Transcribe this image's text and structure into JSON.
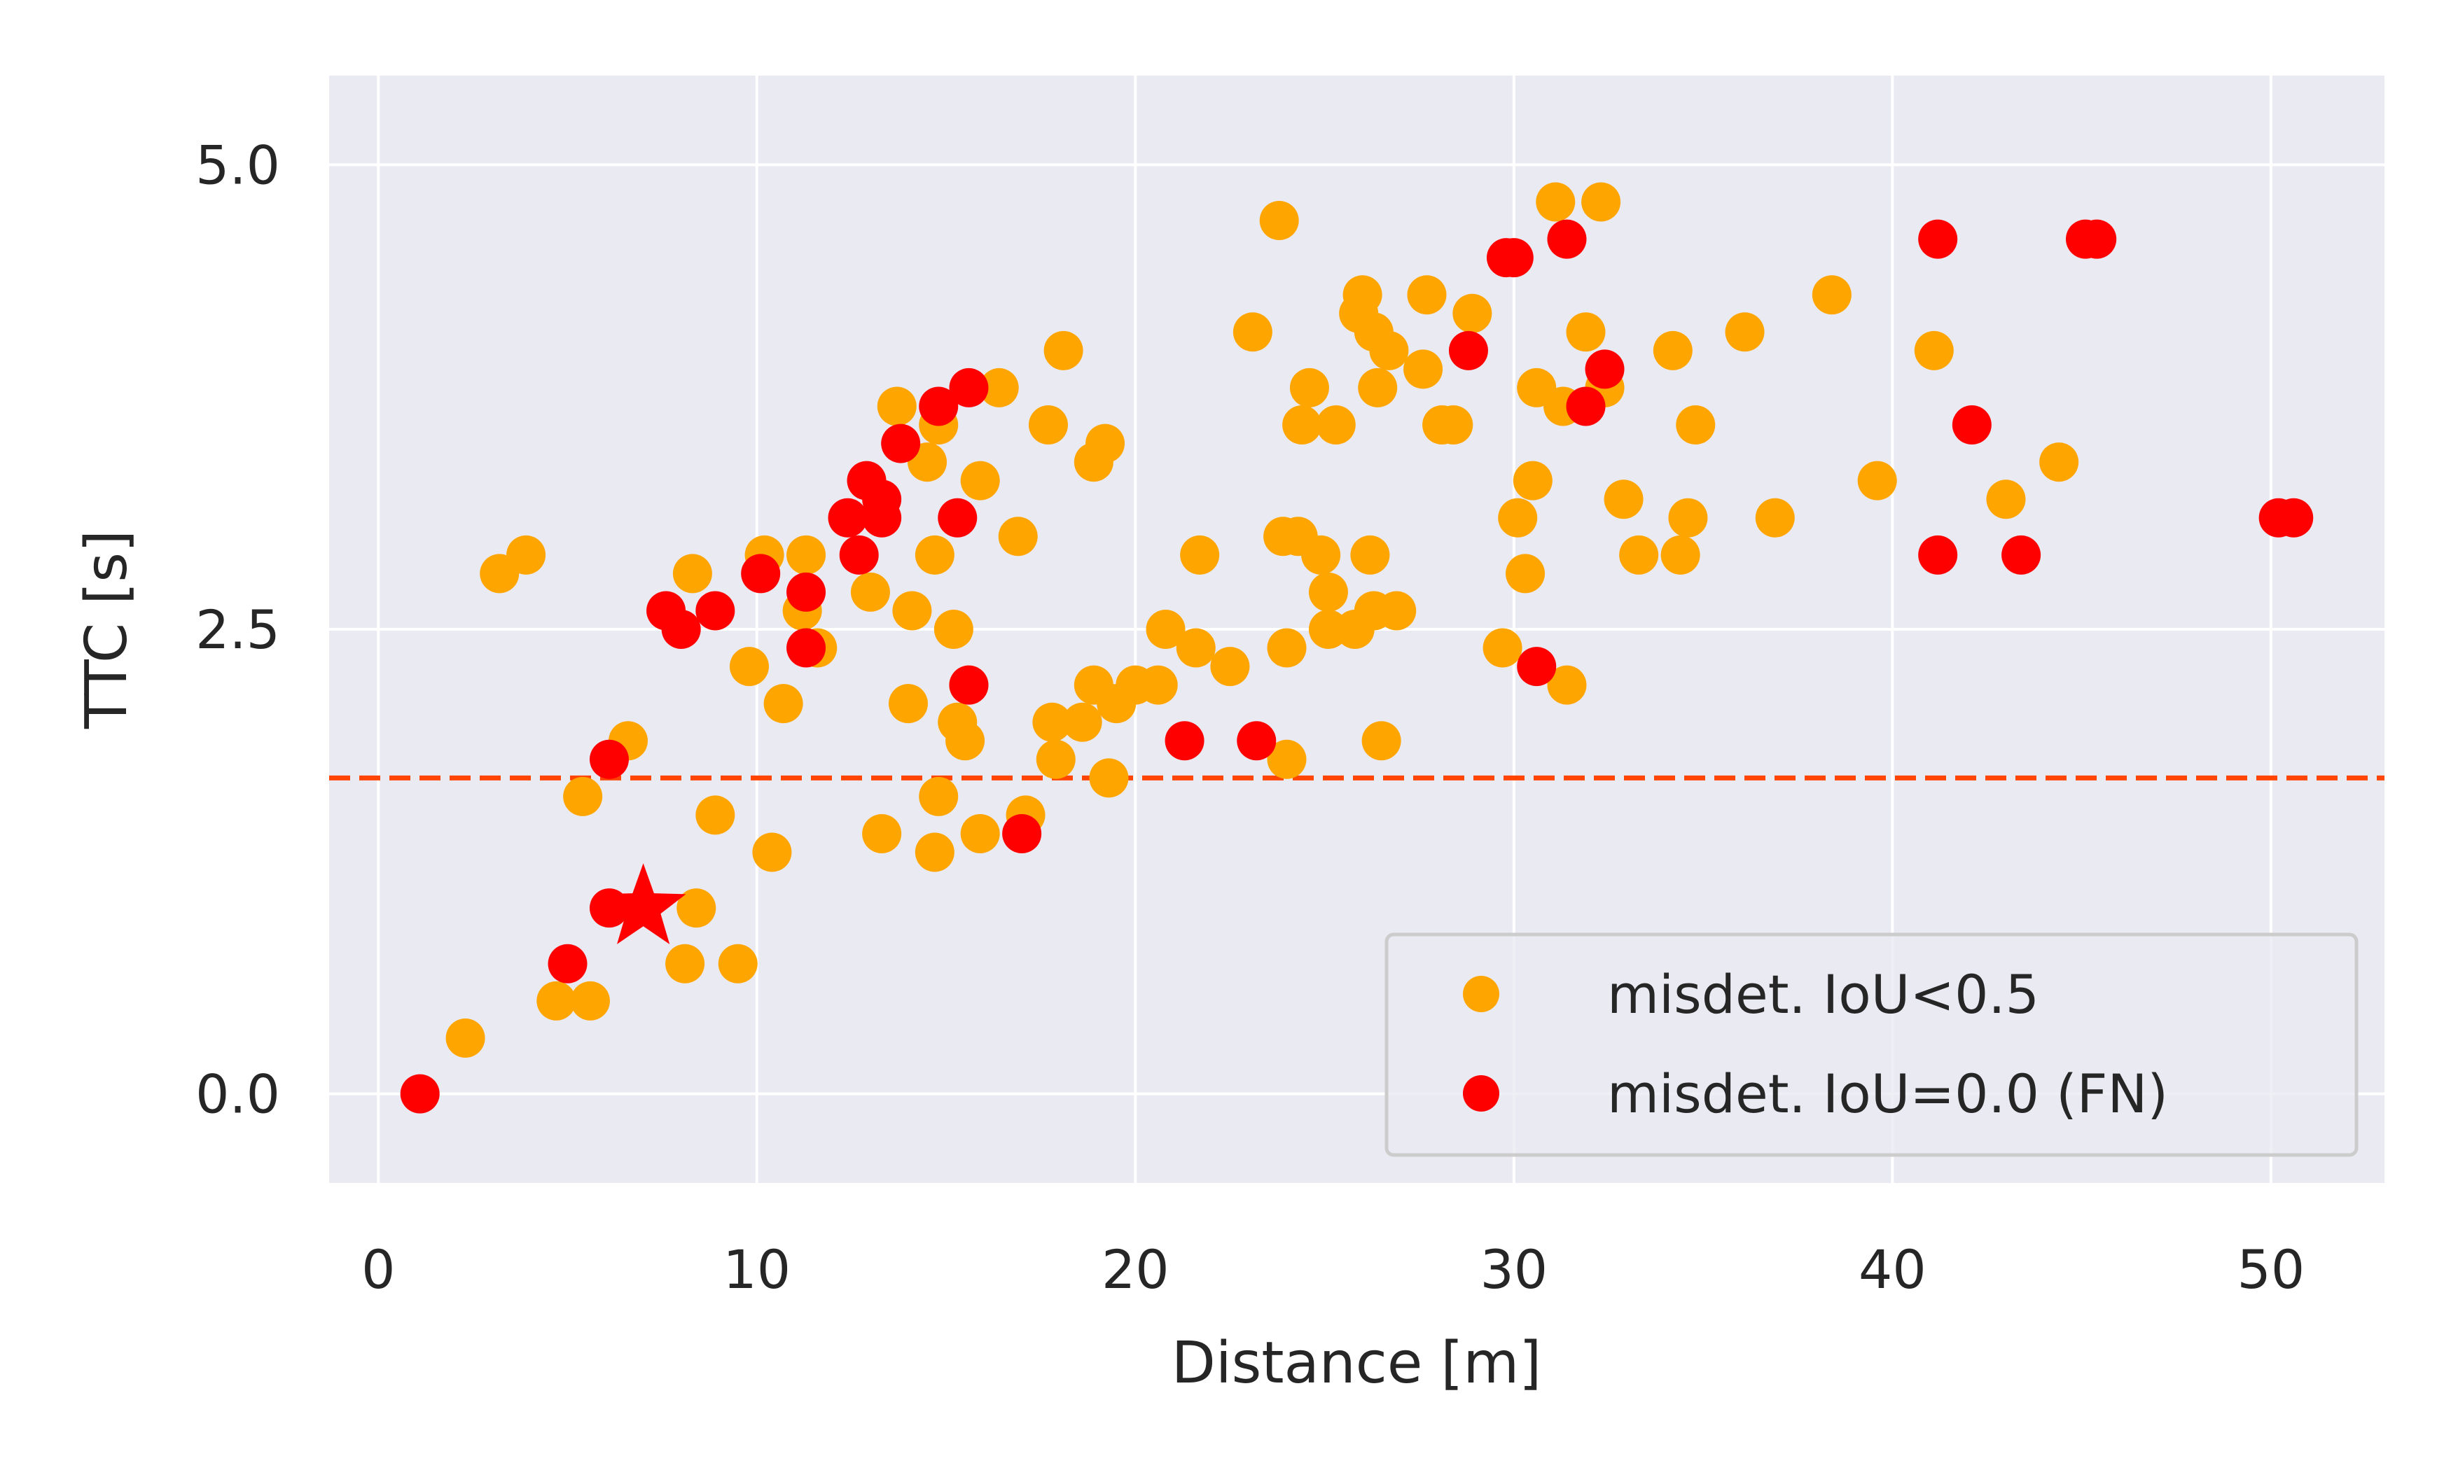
{
  "chart_data": {
    "type": "scatter",
    "xlabel": "Distance [m]",
    "ylabel": "TTC [s]",
    "xlim": [
      -1.3,
      53
    ],
    "ylim": [
      -0.48,
      5.48
    ],
    "xticks": [
      0,
      10,
      20,
      30,
      40,
      50
    ],
    "yticks": [
      0.0,
      2.5,
      5.0
    ],
    "xtick_labels": [
      "0",
      "10",
      "20",
      "30",
      "40",
      "50"
    ],
    "ytick_labels": [
      "0.0",
      "2.5",
      "5.0"
    ],
    "grid": true,
    "legend_position": "lower right",
    "threshold_line": {
      "y": 1.7,
      "style": "dashed",
      "color": "#ff4500"
    },
    "series": [
      {
        "name": "misdet. IoU<0.5",
        "color": "#ffa500",
        "marker": "circle",
        "points": [
          [
            2.3,
            0.3
          ],
          [
            3.2,
            2.8
          ],
          [
            3.9,
            2.9
          ],
          [
            4.7,
            0.5
          ],
          [
            5.6,
            0.5
          ],
          [
            5.4,
            1.6
          ],
          [
            6.6,
            1.9
          ],
          [
            8.1,
            0.7
          ],
          [
            8.3,
            2.8
          ],
          [
            8.4,
            1.0
          ],
          [
            8.9,
            1.5
          ],
          [
            9.5,
            0.7
          ],
          [
            9.8,
            2.3
          ],
          [
            10.2,
            2.9
          ],
          [
            10.4,
            1.3
          ],
          [
            10.7,
            2.1
          ],
          [
            11.2,
            2.6
          ],
          [
            11.3,
            2.9
          ],
          [
            11.6,
            2.4
          ],
          [
            13.0,
            2.7
          ],
          [
            13.3,
            1.4
          ],
          [
            13.7,
            3.7
          ],
          [
            14.0,
            2.1
          ],
          [
            14.1,
            2.6
          ],
          [
            14.5,
            3.4
          ],
          [
            14.7,
            2.9
          ],
          [
            14.8,
            3.6
          ],
          [
            14.8,
            1.6
          ],
          [
            14.7,
            1.3
          ],
          [
            15.2,
            2.5
          ],
          [
            15.3,
            2.0
          ],
          [
            15.5,
            1.9
          ],
          [
            15.6,
            2.2
          ],
          [
            15.9,
            3.3
          ],
          [
            15.9,
            1.4
          ],
          [
            16.4,
            3.8
          ],
          [
            16.9,
            3.0
          ],
          [
            17.1,
            1.5
          ],
          [
            17.7,
            3.6
          ],
          [
            17.8,
            2.0
          ],
          [
            17.9,
            1.8
          ],
          [
            18.1,
            4.0
          ],
          [
            18.6,
            2.0
          ],
          [
            18.9,
            2.2
          ],
          [
            18.9,
            3.4
          ],
          [
            19.2,
            3.5
          ],
          [
            19.3,
            1.7
          ],
          [
            19.5,
            2.1
          ],
          [
            20.0,
            2.2
          ],
          [
            20.6,
            2.2
          ],
          [
            20.8,
            2.5
          ],
          [
            21.6,
            2.4
          ],
          [
            21.7,
            2.9
          ],
          [
            22.5,
            2.3
          ],
          [
            23.1,
            4.1
          ],
          [
            23.8,
            4.7
          ],
          [
            23.9,
            3.0
          ],
          [
            24.0,
            1.8
          ],
          [
            24.0,
            2.4
          ],
          [
            24.3,
            3.0
          ],
          [
            24.4,
            3.6
          ],
          [
            24.6,
            3.8
          ],
          [
            24.9,
            2.9
          ],
          [
            25.1,
            2.7
          ],
          [
            25.1,
            2.5
          ],
          [
            25.3,
            3.6
          ],
          [
            25.8,
            2.5
          ],
          [
            25.9,
            4.2
          ],
          [
            26.0,
            4.3
          ],
          [
            26.2,
            2.9
          ],
          [
            26.3,
            2.6
          ],
          [
            26.3,
            4.1
          ],
          [
            26.4,
            3.8
          ],
          [
            26.5,
            1.9
          ],
          [
            26.7,
            4.0
          ],
          [
            26.9,
            2.6
          ],
          [
            27.6,
            3.9
          ],
          [
            27.7,
            4.3
          ],
          [
            28.1,
            3.6
          ],
          [
            28.4,
            3.6
          ],
          [
            28.9,
            4.2
          ],
          [
            29.7,
            2.4
          ],
          [
            30.1,
            3.1
          ],
          [
            30.3,
            2.8
          ],
          [
            30.5,
            3.3
          ],
          [
            30.6,
            3.8
          ],
          [
            31.1,
            4.8
          ],
          [
            31.3,
            3.7
          ],
          [
            31.4,
            2.2
          ],
          [
            31.9,
            4.1
          ],
          [
            32.3,
            4.8
          ],
          [
            32.4,
            3.8
          ],
          [
            32.9,
            3.2
          ],
          [
            33.3,
            2.9
          ],
          [
            34.2,
            4.0
          ],
          [
            34.4,
            2.9
          ],
          [
            34.6,
            3.1
          ],
          [
            34.8,
            3.6
          ],
          [
            36.1,
            4.1
          ],
          [
            36.9,
            3.1
          ],
          [
            38.4,
            4.3
          ],
          [
            39.6,
            3.3
          ],
          [
            41.1,
            4.0
          ],
          [
            43.0,
            3.2
          ],
          [
            44.4,
            3.4
          ]
        ]
      },
      {
        "name": "misdet. IoU=0.0 (FN)",
        "color": "#ff0000",
        "marker": "circle",
        "points": [
          [
            1.1,
            0.0
          ],
          [
            5.0,
            0.7
          ],
          [
            6.1,
            1.0
          ],
          [
            6.1,
            1.8
          ],
          [
            7.6,
            2.6
          ],
          [
            8.0,
            2.5
          ],
          [
            8.9,
            2.6
          ],
          [
            10.1,
            2.8
          ],
          [
            11.3,
            2.4
          ],
          [
            11.3,
            2.7
          ],
          [
            12.4,
            3.1
          ],
          [
            12.7,
            2.9
          ],
          [
            12.9,
            3.3
          ],
          [
            13.3,
            3.2
          ],
          [
            13.3,
            3.1
          ],
          [
            13.8,
            3.5
          ],
          [
            14.8,
            3.7
          ],
          [
            15.3,
            3.1
          ],
          [
            15.6,
            2.2
          ],
          [
            15.6,
            3.8
          ],
          [
            17.0,
            1.4
          ],
          [
            21.3,
            1.9
          ],
          [
            23.2,
            1.9
          ],
          [
            28.8,
            4.0
          ],
          [
            29.8,
            4.5
          ],
          [
            30.0,
            4.5
          ],
          [
            30.6,
            2.3
          ],
          [
            31.4,
            4.6
          ],
          [
            31.9,
            3.7
          ],
          [
            32.4,
            3.9
          ],
          [
            41.2,
            4.6
          ],
          [
            41.2,
            2.9
          ],
          [
            42.1,
            3.6
          ],
          [
            43.4,
            2.9
          ],
          [
            45.1,
            4.6
          ],
          [
            45.4,
            4.6
          ],
          [
            50.2,
            3.1
          ],
          [
            50.6,
            3.1
          ]
        ]
      }
    ],
    "highlight": {
      "marker": "star",
      "color": "#ff0000",
      "x": 7.0,
      "y": 1.0
    }
  }
}
